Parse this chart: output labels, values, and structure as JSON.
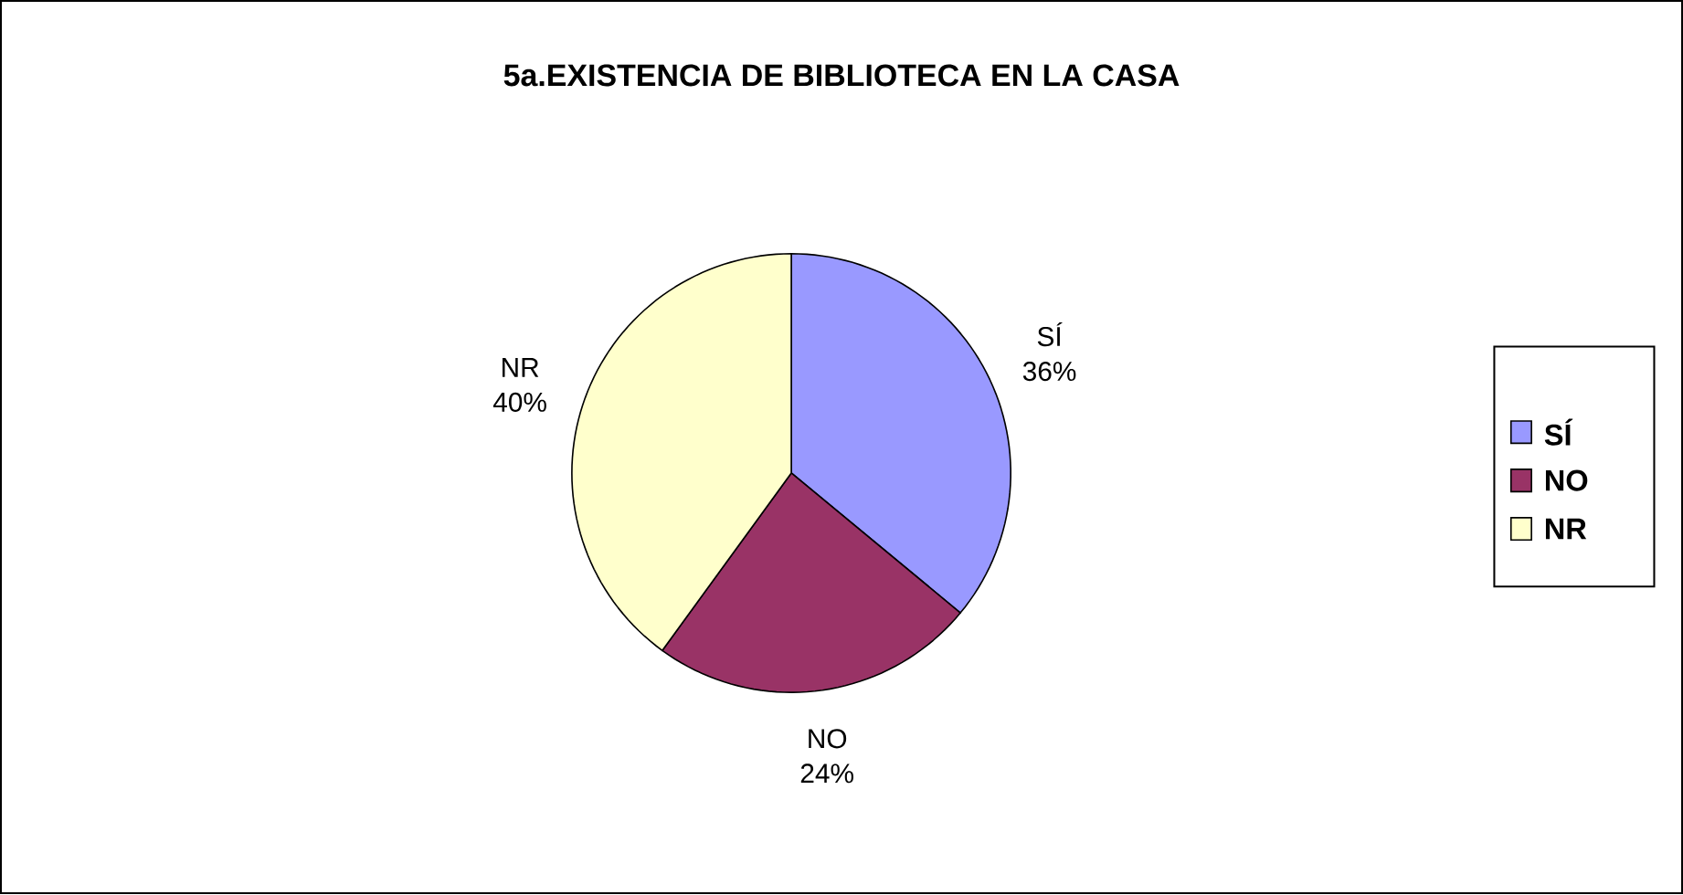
{
  "chart_data": {
    "type": "pie",
    "title": "5a.EXISTENCIA DE BIBLIOTECA EN LA CASA",
    "categories": [
      "SÍ",
      "NO",
      "NR"
    ],
    "values": [
      36,
      24,
      40
    ],
    "value_labels": [
      "36%",
      "24%",
      "40%"
    ],
    "colors": [
      "#9999ff",
      "#993366",
      "#ffffcc"
    ],
    "legend": "right"
  }
}
